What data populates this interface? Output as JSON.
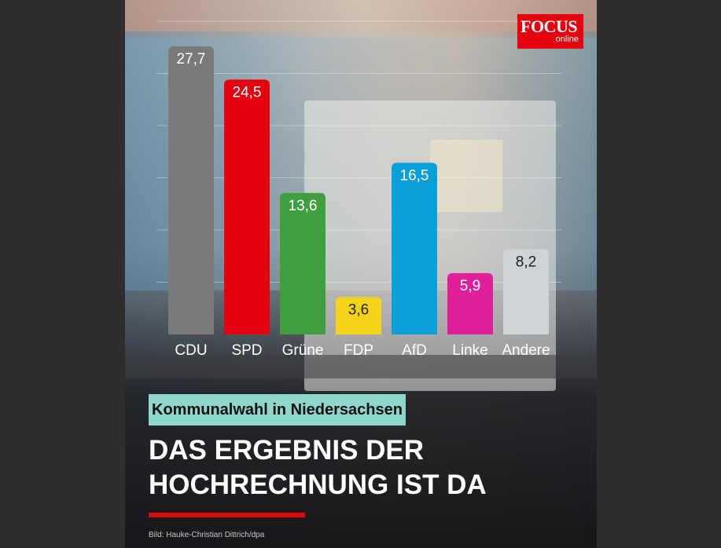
{
  "logo": {
    "brand": "FOCUS",
    "sub": "online",
    "color": "#e3000f"
  },
  "subtitle": "Kommunalwahl in Niedersachsen",
  "headline": {
    "line1": "DAS ERGEBNIS DER",
    "line2": "HOCHRECHNUNG IST DA"
  },
  "credit": "Bild: Hauke-Christian Dittrich/dpa",
  "chart_data": {
    "type": "bar",
    "categories": [
      "CDU",
      "SPD",
      "Grüne",
      "FDP",
      "AfD",
      "Linke",
      "Andere"
    ],
    "values": [
      27.7,
      24.5,
      13.6,
      3.6,
      16.5,
      5.9,
      8.2
    ],
    "value_labels": [
      "27,7",
      "24,5",
      "13,6",
      "3,6",
      "16,5",
      "5,9",
      "8,2"
    ],
    "colors": [
      "#7a7a7a",
      "#e3000f",
      "#3f9f3f",
      "#f5d31a",
      "#0a9fd8",
      "#e0209a",
      "#cfd2d6"
    ],
    "value_label_colors": [
      "#ffffff",
      "#ffffff",
      "#ffffff",
      "#222222",
      "#ffffff",
      "#ffffff",
      "#222222"
    ],
    "title": "",
    "xlabel": "",
    "ylabel": "",
    "ylim": [
      0,
      27.7
    ],
    "grid": true,
    "legend": "none"
  }
}
